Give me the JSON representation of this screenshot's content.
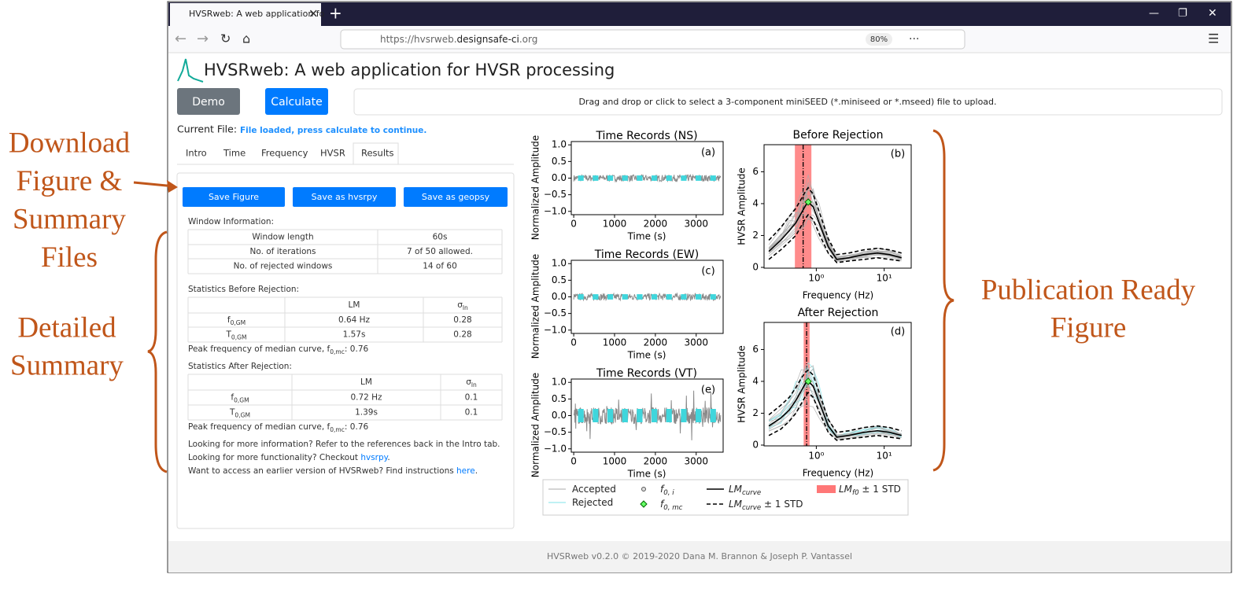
{
  "annotations": {
    "download": [
      "Download",
      "Figure &",
      "Summary",
      "Files"
    ],
    "detailed": [
      "Detailed",
      "Summary"
    ],
    "publication": [
      "Publication Ready",
      "Figure"
    ]
  },
  "browser": {
    "tab_title": "HVSRweb: A web application fo",
    "url_start": "https://hvsrweb.",
    "url_domain": "designsafe-ci",
    "url_end": ".org",
    "zoom": "80%"
  },
  "app": {
    "title": "HVSRweb: A web application for HVSR processing",
    "demo": "Demo",
    "calculate": "Calculate",
    "upload": "Drag and drop or click to select a 3-component miniSEED (*.miniseed or *.mseed) file to upload.",
    "current_file": "Current File:",
    "file_status": "File loaded, press calculate to continue.",
    "tabs": [
      "Intro",
      "Time",
      "Frequency",
      "HVSR",
      "Results"
    ],
    "save_buttons": [
      "Save Figure",
      "Save as hvsrpy",
      "Save as geopsy"
    ],
    "window_info": {
      "heading": "Window Information:",
      "rows": [
        [
          "Window length",
          "60s"
        ],
        [
          "No. of iterations",
          "7 of 50 allowed."
        ],
        [
          "No. of rejected windows",
          "14 of 60"
        ]
      ]
    },
    "before": {
      "heading": "Statistics Before Rejection:",
      "header": [
        "LM",
        "σ"
      ],
      "header_sub": "ln",
      "rows": [
        {
          "label": "f",
          "sub": "0,GM",
          "lm": "0.64 Hz",
          "sigma": "0.28"
        },
        {
          "label": "T",
          "sub": "0,GM",
          "lm": "1.57s",
          "sigma": "0.28"
        }
      ],
      "peak": {
        "text": "Peak frequency of median curve, f",
        "sub": "0,mc",
        "suffix": ": 0.76"
      }
    },
    "after": {
      "heading": "Statistics After Rejection:",
      "header": [
        "LM",
        "σ"
      ],
      "header_sub": "ln",
      "rows": [
        {
          "label": "f",
          "sub": "0,GM",
          "lm": "0.72 Hz",
          "sigma": "0.1"
        },
        {
          "label": "T",
          "sub": "0,GM",
          "lm": "1.39s",
          "sigma": "0.1"
        }
      ],
      "peak": {
        "text": "Peak frequency of median curve, f",
        "sub": "0,mc",
        "suffix": ": 0.76"
      }
    },
    "info_lines": [
      [
        "Looking for more information? Refer to the references back in the Intro tab."
      ],
      [
        "Looking for more functionality? Checkout ",
        "hvsrpy",
        "."
      ],
      [
        "Want to access an earlier version of HVSRweb? Find instructions ",
        "here",
        "."
      ]
    ],
    "footer": "HVSRweb v0.2.0 © 2019-2020 Dana M. Brannon & Joseph P. Vantassel"
  },
  "figure": {
    "time_plots": [
      {
        "title": "Time Records (NS)",
        "letter": "(a)"
      },
      {
        "title": "Time Records (EW)",
        "letter": "(c)"
      },
      {
        "title": "Time Records (VT)",
        "letter": "(e)"
      }
    ],
    "time_axis": {
      "ylabel": "Normalized Amplitude",
      "xlabel": "Time (s)",
      "xlim": [
        -60,
        3660
      ],
      "ylim": [
        -1.1,
        1.1
      ],
      "xticks": [
        0,
        1000,
        2000,
        3000
      ],
      "yticks": [
        {
          "value": 1,
          "label": "1.0"
        },
        {
          "value": 0.5,
          "label": "0.5"
        },
        {
          "value": 0,
          "label": "0.0"
        },
        {
          "value": -0.5,
          "label": "−0.5"
        },
        {
          "value": -1,
          "label": "−1.0"
        }
      ]
    },
    "hvsr_plots": [
      {
        "title": "Before Rejection",
        "letter": "(b)",
        "f0": 0.64,
        "sigma_ln": 0.28,
        "f0_mc": 0.76,
        "f0_mc_amp": 4.1,
        "freq": [
          0.2,
          0.3,
          0.4,
          0.5,
          0.6,
          0.7,
          0.76,
          0.9,
          1.1,
          1.5,
          2,
          3,
          5,
          8,
          12,
          18
        ],
        "median": [
          1.0,
          1.7,
          2.3,
          2.8,
          3.4,
          3.9,
          4.1,
          3.8,
          2.8,
          1.3,
          0.5,
          0.6,
          0.8,
          0.9,
          0.8,
          0.6
        ],
        "upper": [
          1.7,
          2.5,
          3.2,
          3.7,
          4.3,
          4.8,
          5.0,
          4.6,
          3.5,
          1.8,
          0.8,
          0.9,
          1.1,
          1.2,
          1.1,
          0.9
        ],
        "lower": [
          0.5,
          1.1,
          1.6,
          2.0,
          2.6,
          3.1,
          3.3,
          3.0,
          2.1,
          0.9,
          0.3,
          0.4,
          0.5,
          0.6,
          0.5,
          0.4
        ]
      },
      {
        "title": "After Rejection",
        "letter": "(d)",
        "f0": 0.72,
        "sigma_ln": 0.1,
        "f0_mc": 0.76,
        "f0_mc_amp": 4.0,
        "freq": [
          0.2,
          0.3,
          0.4,
          0.5,
          0.6,
          0.7,
          0.76,
          0.9,
          1.1,
          1.5,
          2,
          3,
          5,
          8,
          12,
          18
        ],
        "median": [
          1.2,
          1.7,
          2.2,
          2.8,
          3.4,
          3.9,
          4.0,
          3.7,
          2.7,
          1.2,
          0.5,
          0.6,
          0.8,
          0.9,
          0.8,
          0.6
        ],
        "upper": [
          1.9,
          2.5,
          3.0,
          3.6,
          4.2,
          4.6,
          4.7,
          4.4,
          3.3,
          1.6,
          0.8,
          0.9,
          1.1,
          1.2,
          1.1,
          0.9
        ],
        "lower": [
          0.6,
          1.0,
          1.5,
          2.0,
          2.6,
          3.1,
          3.3,
          3.0,
          2.1,
          0.8,
          0.3,
          0.4,
          0.5,
          0.6,
          0.5,
          0.4
        ]
      }
    ],
    "hvsr_axis": {
      "ylabel": "HVSR Amplitude",
      "xlabel": "Frequency (Hz)",
      "log_x": true,
      "xlim": [
        0.17,
        25
      ],
      "ylim": [
        -0.05,
        7.7
      ],
      "xticks": [
        {
          "value": 1,
          "label": "10⁰"
        },
        {
          "value": 10,
          "label": "10¹"
        }
      ],
      "yticks": [
        0,
        2,
        4,
        6
      ]
    },
    "legend": [
      {
        "text": "Accepted"
      },
      {
        "text": "Rejected"
      },
      {
        "text": "f",
        "sub": "0, i"
      },
      {
        "text": "f",
        "sub": "0, mc"
      },
      {
        "text": "LM",
        "sub": "curve"
      },
      {
        "text": "LM",
        "sub": "curve",
        "suffix": " ± 1 STD"
      },
      {
        "text": "LM",
        "sub": "f0",
        "suffix": " ± 1 STD"
      }
    ]
  }
}
